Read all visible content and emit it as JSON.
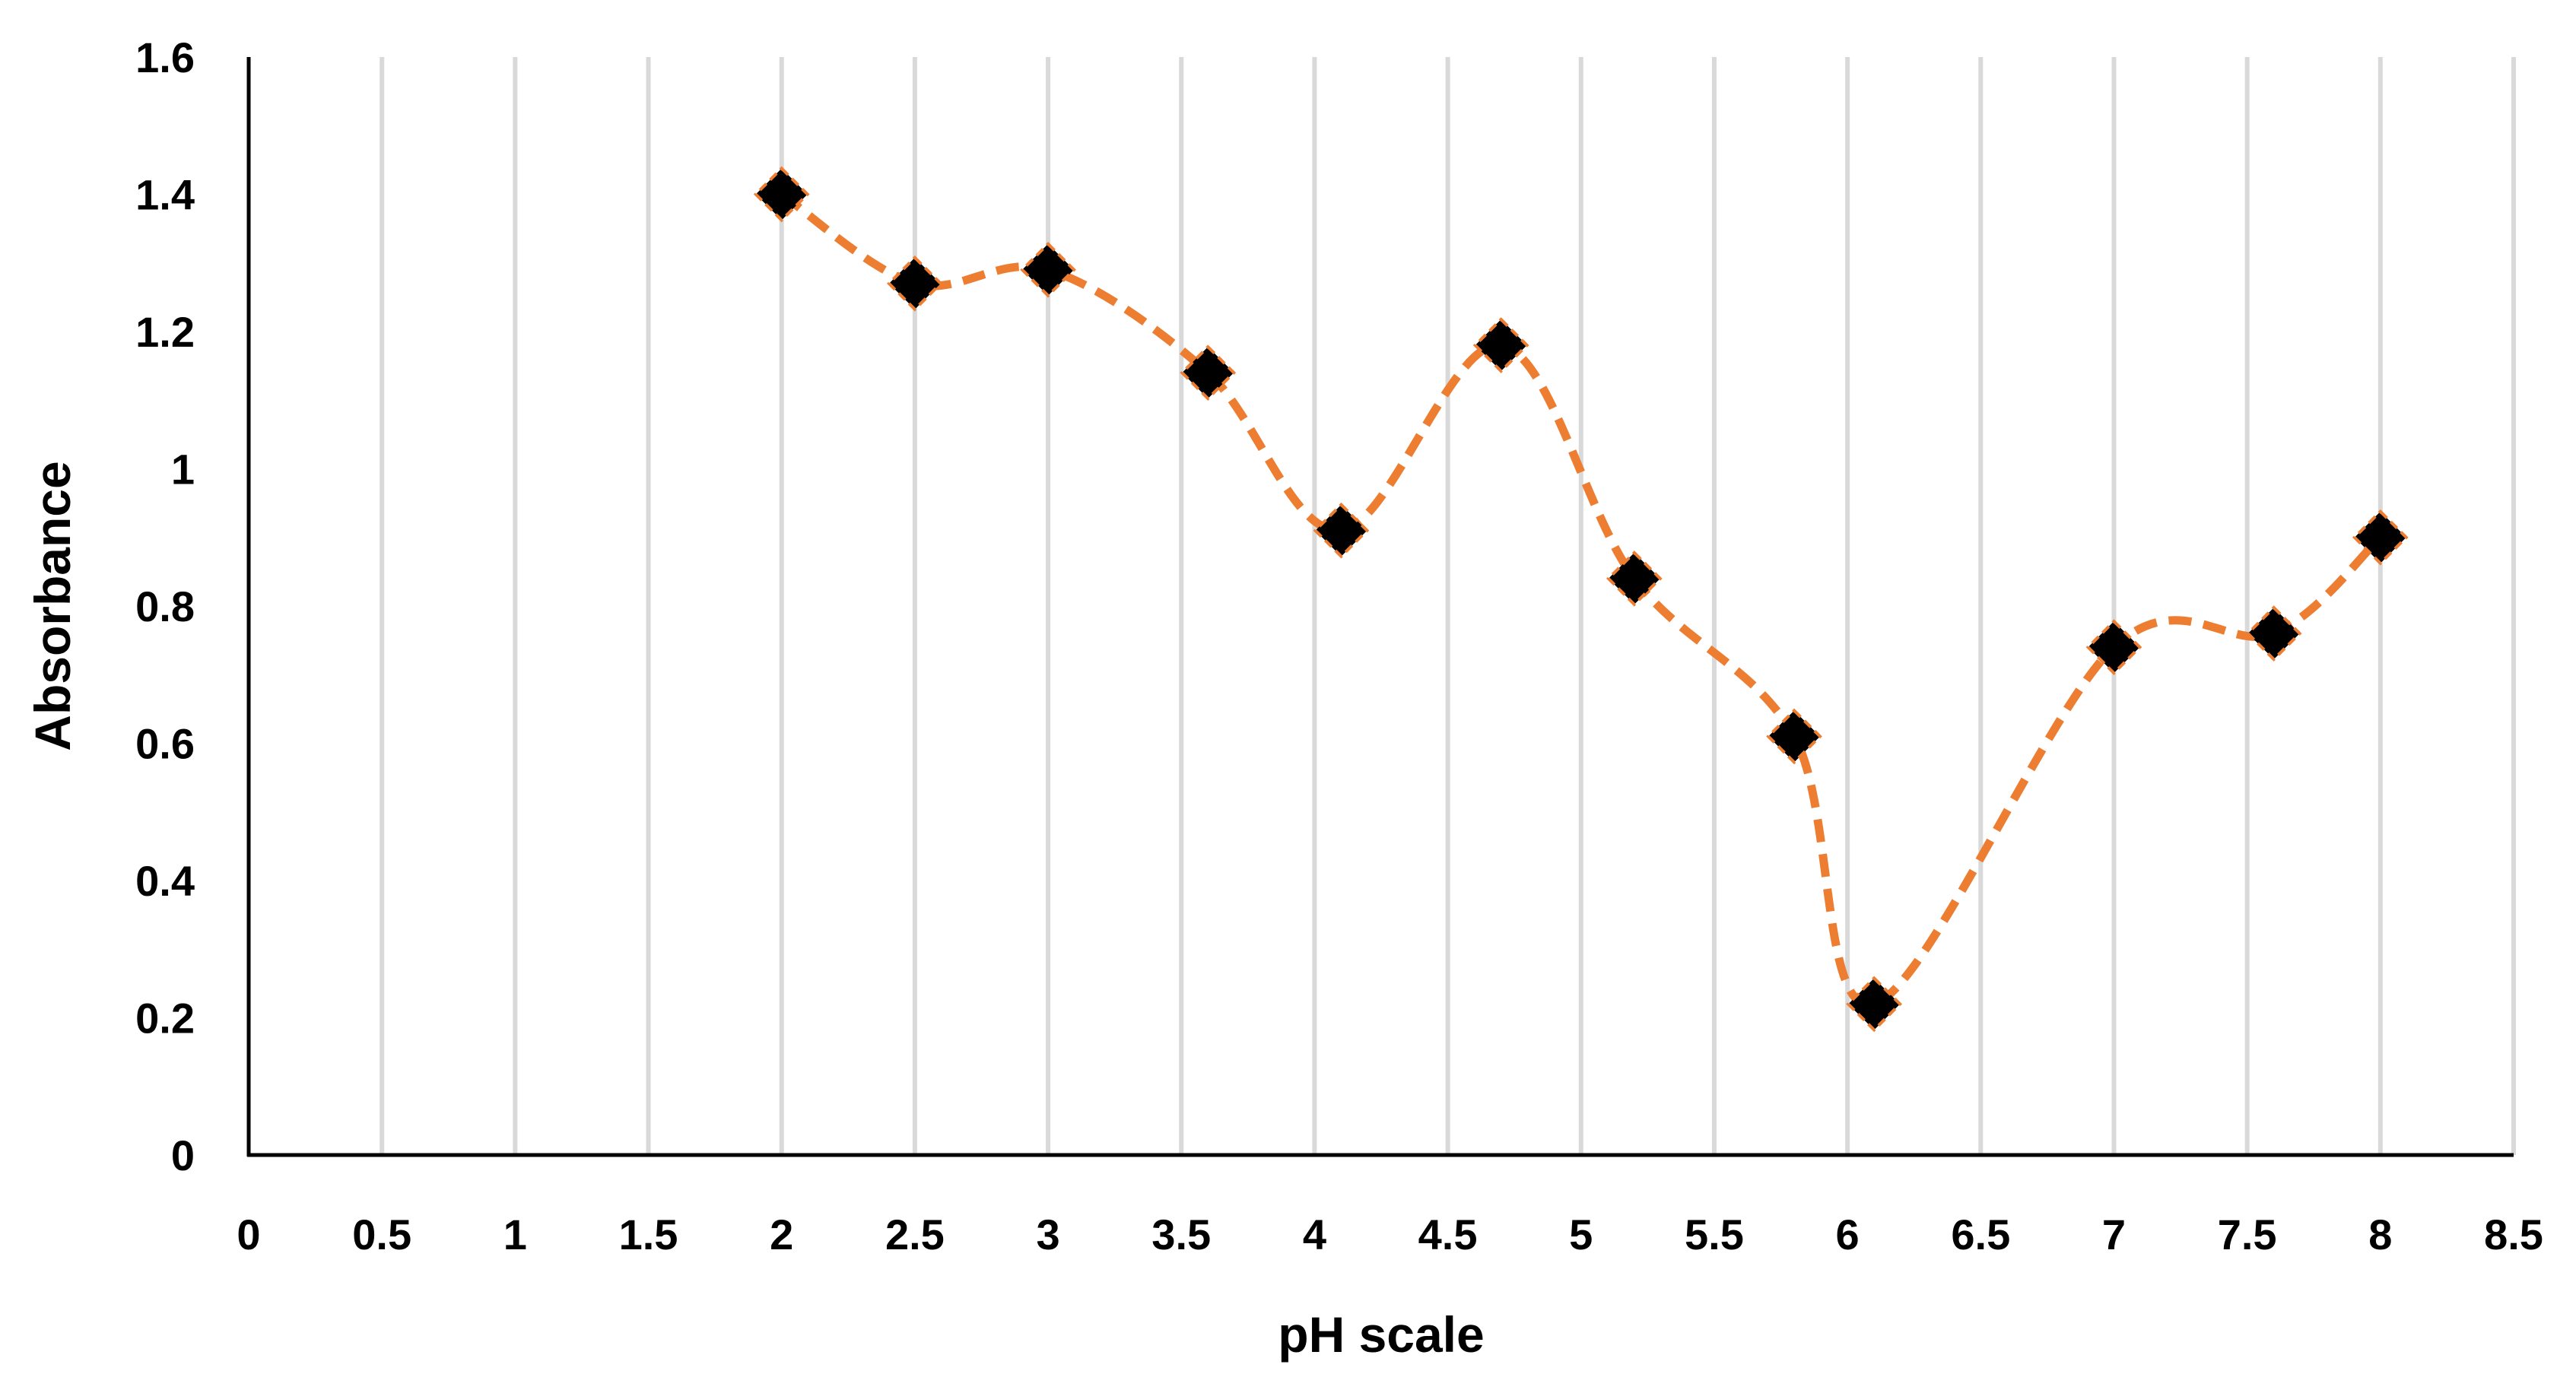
{
  "chart_data": {
    "type": "scatter",
    "xlabel": "pH scale",
    "ylabel": "Absorbance",
    "xlim": [
      0,
      8.5
    ],
    "ylim": [
      0,
      1.6
    ],
    "x_ticks": [
      0,
      0.5,
      1,
      1.5,
      2,
      2.5,
      3,
      3.5,
      4,
      4.5,
      5,
      5.5,
      6,
      6.5,
      7,
      7.5,
      8,
      8.5
    ],
    "x_tick_labels": [
      "0",
      "0.5",
      "1",
      "1.5",
      "2",
      "2.5",
      "3",
      "3.5",
      "4",
      "4.5",
      "5",
      "5.5",
      "6",
      "6.5",
      "7",
      "7.5",
      "8",
      "8.5"
    ],
    "y_ticks": [
      0,
      0.2,
      0.4,
      0.6,
      0.8,
      1,
      1.2,
      1.4,
      1.6
    ],
    "y_tick_labels": [
      "0",
      "0.2",
      "0.4",
      "0.6",
      "0.8",
      "1",
      "1.2",
      "1.4",
      "1.6"
    ],
    "grid": "vertical",
    "legend": "none",
    "series": [
      {
        "marker": "diamond",
        "marker_color": "#000000",
        "line_color": "#ED7D31",
        "line_style": "dashed-smooth",
        "x": [
          2,
          2.5,
          3,
          3.6,
          4.1,
          4.7,
          5.2,
          5.8,
          6.1,
          7,
          7.6,
          8
        ],
        "y": [
          1.4,
          1.27,
          1.29,
          1.14,
          0.91,
          1.18,
          0.84,
          0.61,
          0.22,
          0.74,
          0.76,
          0.9
        ]
      }
    ],
    "colors": {
      "grid": "#D9D9D9",
      "axis": "#000000",
      "line": "#ED7D31",
      "marker": "#000000"
    }
  }
}
